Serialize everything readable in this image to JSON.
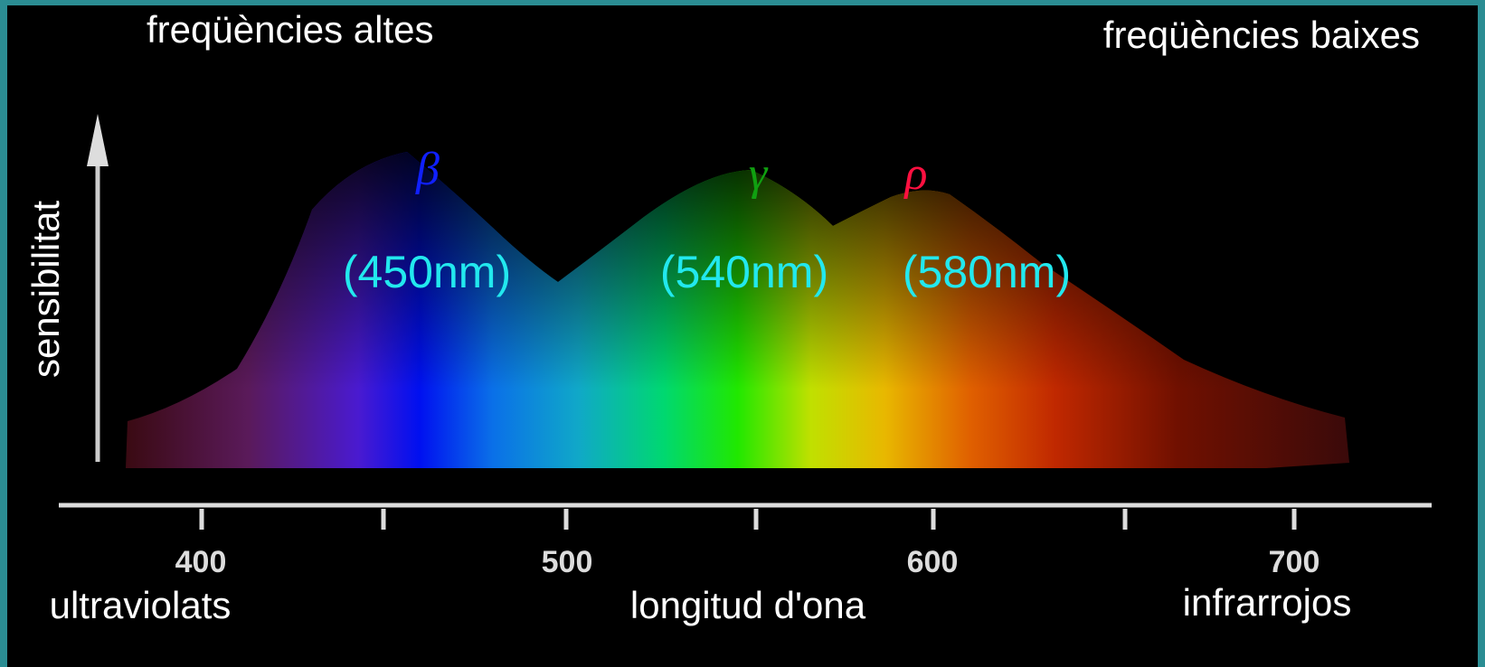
{
  "header": {
    "left": "freqüències altes",
    "right": "freqüències baixes"
  },
  "y_axis": {
    "label": "sensibilitat"
  },
  "x_axis": {
    "ticks": [
      "400",
      "500",
      "600",
      "700"
    ],
    "labels": [
      "ultraviolats",
      "longitud d'ona",
      "infrarrojos"
    ]
  },
  "peaks": [
    {
      "symbol": "β",
      "label": "(450nm)"
    },
    {
      "symbol": "γ",
      "label": "(540nm)"
    },
    {
      "symbol": "ρ",
      "label": "(580nm)"
    }
  ]
}
